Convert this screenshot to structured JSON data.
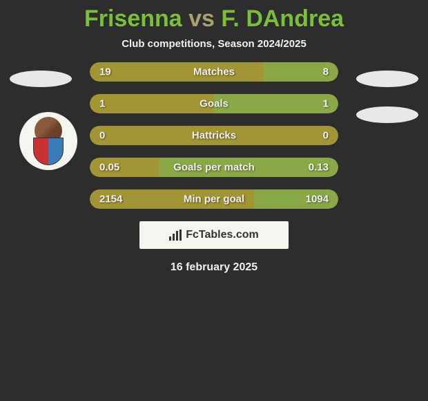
{
  "title": {
    "player1": "Frisenna",
    "vs": "vs",
    "player2": "F. DAndrea",
    "player1_color": "#7abf3a",
    "player2_color": "#7abf3a",
    "vs_color": "#a8a070"
  },
  "subtitle": "Club competitions, Season 2024/2025",
  "stats": [
    {
      "label": "Matches",
      "left_value": "19",
      "right_value": "8",
      "left_pct": 70,
      "right_pct": 30,
      "left_color": "#a29536",
      "right_color": "#8aa848"
    },
    {
      "label": "Goals",
      "left_value": "1",
      "right_value": "1",
      "left_pct": 50,
      "right_pct": 50,
      "left_color": "#a29536",
      "right_color": "#8aa848"
    },
    {
      "label": "Hattricks",
      "left_value": "0",
      "right_value": "0",
      "left_pct": 100,
      "right_pct": 0,
      "left_color": "#a29536",
      "right_color": "#8aa848"
    },
    {
      "label": "Goals per match",
      "left_value": "0.05",
      "right_value": "0.13",
      "left_pct": 28,
      "right_pct": 72,
      "left_color": "#a29536",
      "right_color": "#8aa848"
    },
    {
      "label": "Min per goal",
      "left_value": "2154",
      "right_value": "1094",
      "left_pct": 66,
      "right_pct": 34,
      "left_color": "#a29536",
      "right_color": "#8aa848"
    }
  ],
  "branding": {
    "text": "FcTables.com"
  },
  "date": "16 february 2025",
  "colors": {
    "background": "#2d2d2d",
    "ellipse": "#e8e8e8",
    "text_light": "#f0f0f0",
    "branding_bg": "#f5f5f0",
    "branding_text": "#333333"
  }
}
